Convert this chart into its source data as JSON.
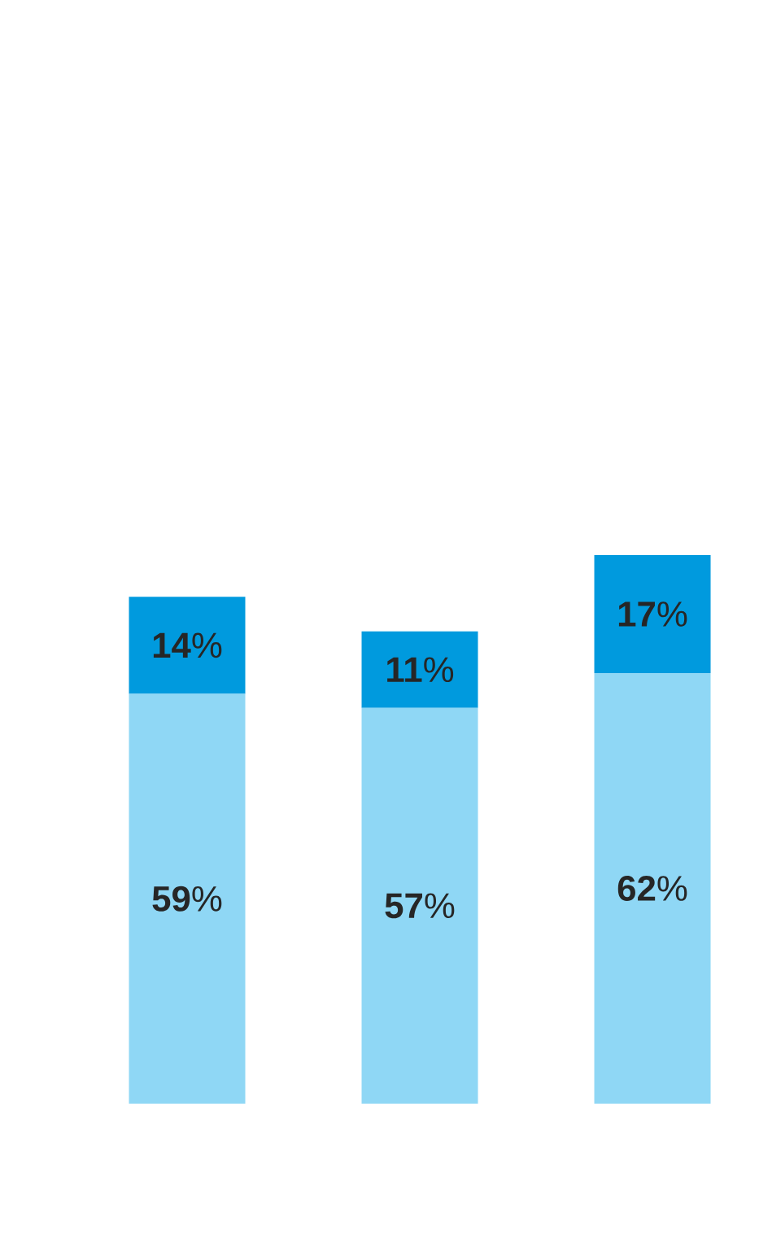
{
  "chart_data": {
    "type": "bar",
    "stacked": true,
    "categories": [
      null,
      null,
      null
    ],
    "series": [
      {
        "color": "#8fd7f5",
        "values": [
          59,
          57,
          62
        ],
        "value_labels": [
          "**59**%",
          "**57**%",
          "**62**%"
        ]
      },
      {
        "color": "#009ade",
        "values": [
          14,
          11,
          17
        ],
        "value_labels": [
          "**14**%",
          "**11**%",
          "**17**%"
        ]
      }
    ]
  }
}
